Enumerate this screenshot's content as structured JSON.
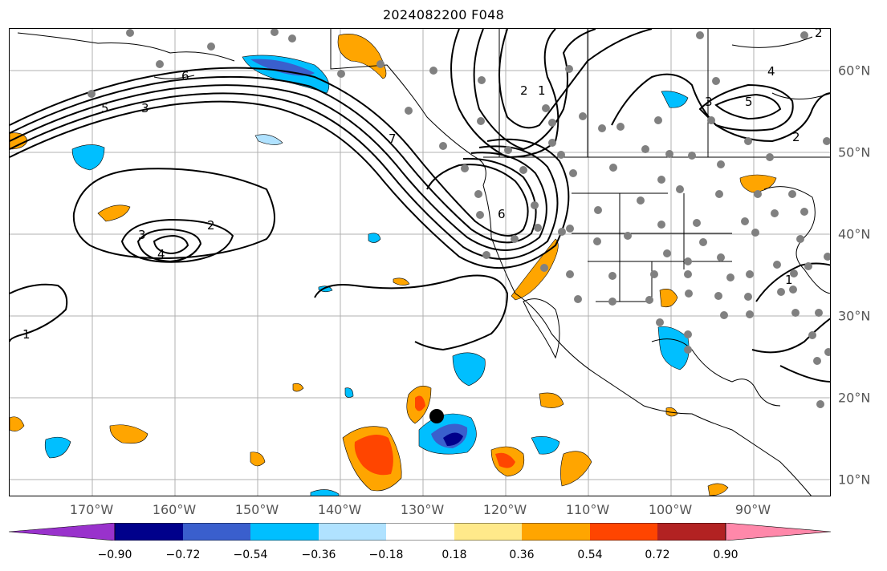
{
  "title": "2024082200 F048",
  "lon_labels": [
    "170°W",
    "160°W",
    "150°W",
    "140°W",
    "130°W",
    "120°W",
    "110°W",
    "100°W",
    "90°W"
  ],
  "lat_labels": [
    "60°N",
    "50°N",
    "40°N",
    "30°N",
    "20°N",
    "10°N"
  ],
  "colorbar": {
    "ticks": [
      "−0.90",
      "−0.72",
      "−0.54",
      "−0.36",
      "−0.18",
      "0.18",
      "0.36",
      "0.54",
      "0.72",
      "0.90"
    ],
    "colors": [
      "#9932cc",
      "#00008b",
      "#3a5fcd",
      "#00bfff",
      "#b0e2ff",
      "#ffffff",
      "#ffe98a",
      "#ffa500",
      "#ff4500",
      "#b22222",
      "#ff88aa"
    ]
  },
  "contour_labels": [
    "6",
    "5",
    "3",
    "7",
    "2",
    "1",
    "6",
    "2",
    "3",
    "4",
    "2",
    "1",
    "4",
    "3",
    "2",
    "1",
    "5"
  ],
  "marker_color_stations": "#808080",
  "storm_marker": "black-dot"
}
